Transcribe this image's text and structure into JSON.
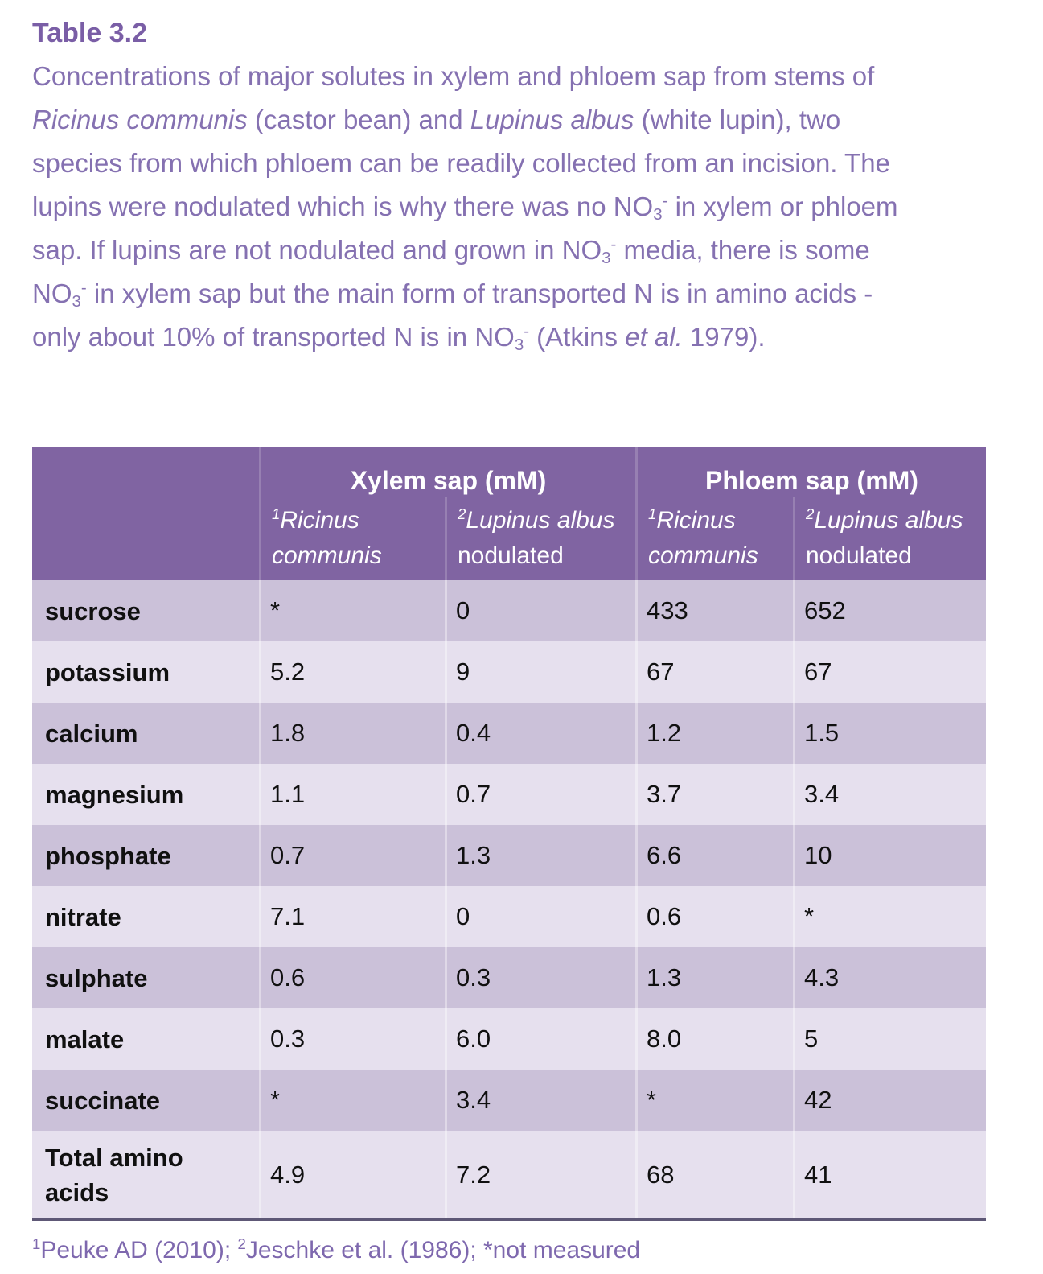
{
  "colors": {
    "header_bg": "#8064A2",
    "header_text": "#FFFFFF",
    "row_dark": "#CBC1D9",
    "row_light": "#E6E0EE",
    "title_text": "#7A5EA6",
    "paragraph_text": "#8571B1",
    "footnote_text": "#7E68AE",
    "rule": "#5E5876",
    "cell_text": "#101010"
  },
  "intro": {
    "title": "Table 3.2",
    "lines": [
      [
        {
          "t": "Concentrations of major solutes in xylem and phloem sap from stems of"
        }
      ],
      [
        {
          "t": "Ricinus communis",
          "i": true
        },
        {
          "t": " (castor bean) and "
        },
        {
          "t": "Lupinus albus",
          "i": true
        },
        {
          "t": " (white lupin), two"
        }
      ],
      [
        {
          "t": "species from which phloem can be readily collected from an incision. The"
        }
      ],
      [
        {
          "t": "lupins were nodulated which is why there was no NO"
        },
        {
          "t": "3",
          "sub": true
        },
        {
          "t": "-",
          "sup": true
        },
        {
          "t": " in xylem or phloem"
        }
      ],
      [
        {
          "t": "sap. If lupins are not nodulated and grown in NO"
        },
        {
          "t": "3",
          "sub": true
        },
        {
          "t": "-",
          "sup": true
        },
        {
          "t": " media, there is some"
        }
      ],
      [
        {
          "t": "NO"
        },
        {
          "t": "3",
          "sub": true
        },
        {
          "t": "-",
          "sup": true
        },
        {
          "t": " in xylem sap but the main form of transported N is in amino acids -"
        }
      ],
      [
        {
          "t": "only about 10% of transported N is in NO"
        },
        {
          "t": "3",
          "sub": true
        },
        {
          "t": "-",
          "sup": true
        },
        {
          "t": " (Atkins "
        },
        {
          "t": "et al.",
          "i": true
        },
        {
          "t": " 1979)."
        }
      ]
    ]
  },
  "table": {
    "group_headers": [
      "Xylem sap (mM)",
      "Phloem sap (mM)"
    ],
    "col_headers": [
      [
        {
          "t": "1",
          "sup": true,
          "i": true
        },
        {
          "t": "Ricinus communis",
          "i": true
        }
      ],
      [
        {
          "t": "2",
          "sup": true,
          "i": true
        },
        {
          "t": "Lupinus albus",
          "i": true
        },
        {
          "t": " nodulated"
        }
      ],
      [
        {
          "t": "1",
          "sup": true,
          "i": true
        },
        {
          "t": "Ricinus communis",
          "i": true
        }
      ],
      [
        {
          "t": "2",
          "sup": true,
          "i": true
        },
        {
          "t": "Lupinus albus",
          "i": true
        },
        {
          "t": " nodulated"
        }
      ]
    ],
    "rows": [
      {
        "label": "sucrose",
        "values": [
          "*",
          "0",
          "433",
          "652"
        ]
      },
      {
        "label": "potassium",
        "values": [
          "5.2",
          "9",
          "67",
          "67"
        ]
      },
      {
        "label": "calcium",
        "values": [
          "1.8",
          "0.4",
          "1.2",
          "1.5"
        ]
      },
      {
        "label": "magnesium",
        "values": [
          "1.1",
          "0.7",
          "3.7",
          "3.4"
        ]
      },
      {
        "label": "phosphate",
        "values": [
          "0.7",
          "1.3",
          "6.6",
          "10"
        ]
      },
      {
        "label": "nitrate",
        "values": [
          "7.1",
          "0",
          "0.6",
          "*"
        ]
      },
      {
        "label": "sulphate",
        "values": [
          "0.6",
          "0.3",
          "1.3",
          "4.3"
        ]
      },
      {
        "label": "malate",
        "values": [
          "0.3",
          "6.0",
          "8.0",
          "5"
        ]
      },
      {
        "label": "succinate",
        "values": [
          "*",
          "3.4",
          "*",
          "42"
        ]
      },
      {
        "label": "Total amino acids",
        "values": [
          "4.9",
          "7.2",
          "68",
          "41"
        ]
      }
    ],
    "footnote": [
      {
        "t": "1",
        "sup": true
      },
      {
        "t": "Peuke AD (2010); "
      },
      {
        "t": "2",
        "sup": true
      },
      {
        "t": "Jeschke et al. (1986); *not measured"
      }
    ]
  }
}
